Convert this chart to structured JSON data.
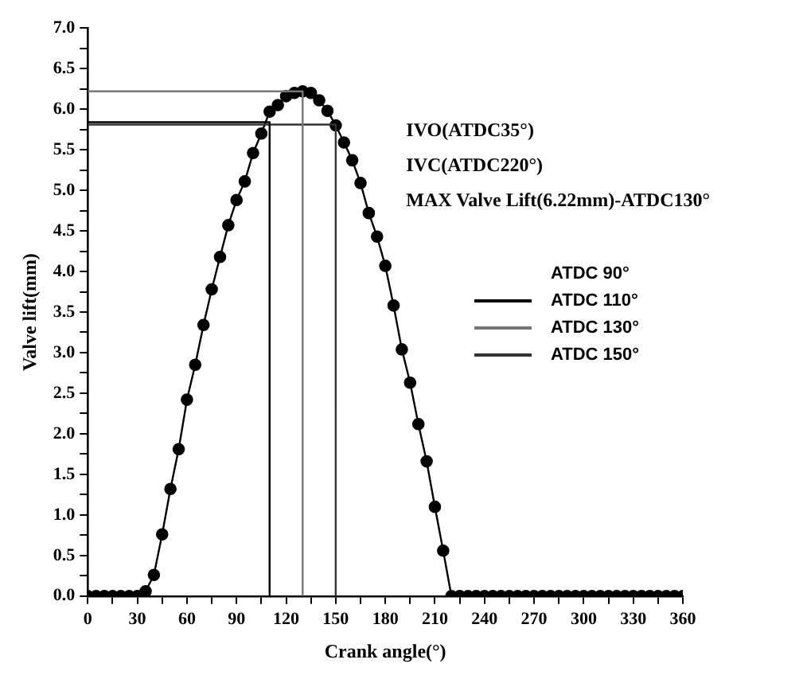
{
  "chart_data": {
    "type": "line",
    "xlabel": "Crank angle(°)",
    "ylabel": "Valve lift(mm)",
    "marker": "circle",
    "legend": "right",
    "legend_title": "ATDC 90°",
    "grid": false,
    "x": [
      0,
      5,
      10,
      15,
      20,
      25,
      30,
      35,
      40,
      45,
      50,
      55,
      60,
      65,
      70,
      75,
      80,
      85,
      90,
      95,
      100,
      105,
      110,
      115,
      120,
      125,
      130,
      135,
      140,
      145,
      150,
      155,
      160,
      165,
      170,
      175,
      180,
      185,
      190,
      195,
      200,
      205,
      210,
      215,
      220,
      225,
      230,
      235,
      240,
      245,
      250,
      255,
      260,
      265,
      270,
      275,
      280,
      285,
      290,
      295,
      300,
      305,
      310,
      315,
      320,
      325,
      330,
      335,
      340,
      345,
      350,
      355,
      360
    ],
    "series": [
      {
        "marker": "none",
        "name": "ATDC 110°",
        "color": "#000000",
        "x": [
          0,
          110,
          110
        ],
        "values": [
          5.84,
          5.84,
          0
        ]
      },
      {
        "marker": "none",
        "name": "ATDC 130°",
        "color": "#777777",
        "x": [
          0,
          130,
          130
        ],
        "values": [
          6.22,
          6.22,
          0
        ]
      },
      {
        "marker": "none",
        "name": "ATDC 150°",
        "color": "#333333",
        "x": [
          0,
          150,
          150
        ],
        "values": [
          5.81,
          5.81,
          0
        ]
      },
      {
        "color": "#000000",
        "values": [
          0,
          0,
          0,
          0,
          0,
          0,
          0,
          0.06,
          0.26,
          0.76,
          1.32,
          1.81,
          2.42,
          2.85,
          3.34,
          3.78,
          4.18,
          4.57,
          4.88,
          5.11,
          5.46,
          5.7,
          5.97,
          6.05,
          6.16,
          6.2,
          6.22,
          6.2,
          6.11,
          5.98,
          5.8,
          5.59,
          5.37,
          5.09,
          4.72,
          4.43,
          4.07,
          3.58,
          3.04,
          2.63,
          2.12,
          1.66,
          1.1,
          0.56,
          0,
          0,
          0,
          0,
          0,
          0,
          0,
          0,
          0,
          0,
          0,
          0,
          0,
          0,
          0,
          0,
          0,
          0,
          0,
          0,
          0,
          0,
          0,
          0,
          0,
          0,
          0,
          0,
          0
        ]
      }
    ],
    "xlim": [
      0,
      360
    ],
    "xticks": [
      0,
      {
        "value": 15,
        "label": null
      },
      30,
      {
        "value": 45,
        "label": null
      },
      60,
      {
        "value": 75,
        "label": null
      },
      90,
      {
        "value": 105,
        "label": null
      },
      120,
      {
        "value": 135,
        "label": null
      },
      150,
      {
        "value": 165,
        "label": null
      },
      180,
      {
        "value": 195,
        "label": null
      },
      210,
      {
        "value": 225,
        "label": null
      },
      240,
      {
        "value": 255,
        "label": null
      },
      270,
      {
        "value": 285,
        "label": null
      },
      300,
      {
        "value": 315,
        "label": null
      },
      330,
      {
        "value": 345,
        "label": null
      },
      360
    ],
    "ylim": [
      0,
      7
    ],
    "yticks": [
      {
        "value": 0,
        "label": "0.0"
      },
      {
        "value": 0.25,
        "label": null
      },
      {
        "value": 0.5,
        "label": "0.5"
      },
      {
        "value": 0.75,
        "label": null
      },
      {
        "value": 1,
        "label": "1.0"
      },
      {
        "value": 1.25,
        "label": null
      },
      {
        "value": 1.5,
        "label": "1.5"
      },
      {
        "value": 1.75,
        "label": null
      },
      {
        "value": 2,
        "label": "2.0"
      },
      {
        "value": 2.25,
        "label": null
      },
      {
        "value": 2.5,
        "label": "2.5"
      },
      {
        "value": 2.75,
        "label": null
      },
      {
        "value": 3,
        "label": "3.0"
      },
      {
        "value": 3.25,
        "label": null
      },
      {
        "value": 3.5,
        "label": "3.5"
      },
      {
        "value": 3.75,
        "label": null
      },
      {
        "value": 4,
        "label": "4.0"
      },
      {
        "value": 4.25,
        "label": null
      },
      {
        "value": 4.5,
        "label": "4.5"
      },
      {
        "value": 4.75,
        "label": null
      },
      {
        "value": 5,
        "label": "5.0"
      },
      {
        "value": 5.25,
        "label": null
      },
      {
        "value": 5.5,
        "label": "5.5"
      },
      {
        "value": 5.75,
        "label": null
      },
      {
        "value": 6,
        "label": "6.0"
      },
      {
        "value": 6.25,
        "label": null
      },
      {
        "value": 6.5,
        "label": "6.5"
      },
      {
        "value": 6.75,
        "label": null
      },
      {
        "value": 7,
        "label": "7.0"
      }
    ],
    "annotations": [
      "IVO(ATDC35°)",
      "IVC(ATDC220°)",
      "MAX Valve Lift(6.22mm)-ATDC130°"
    ]
  }
}
